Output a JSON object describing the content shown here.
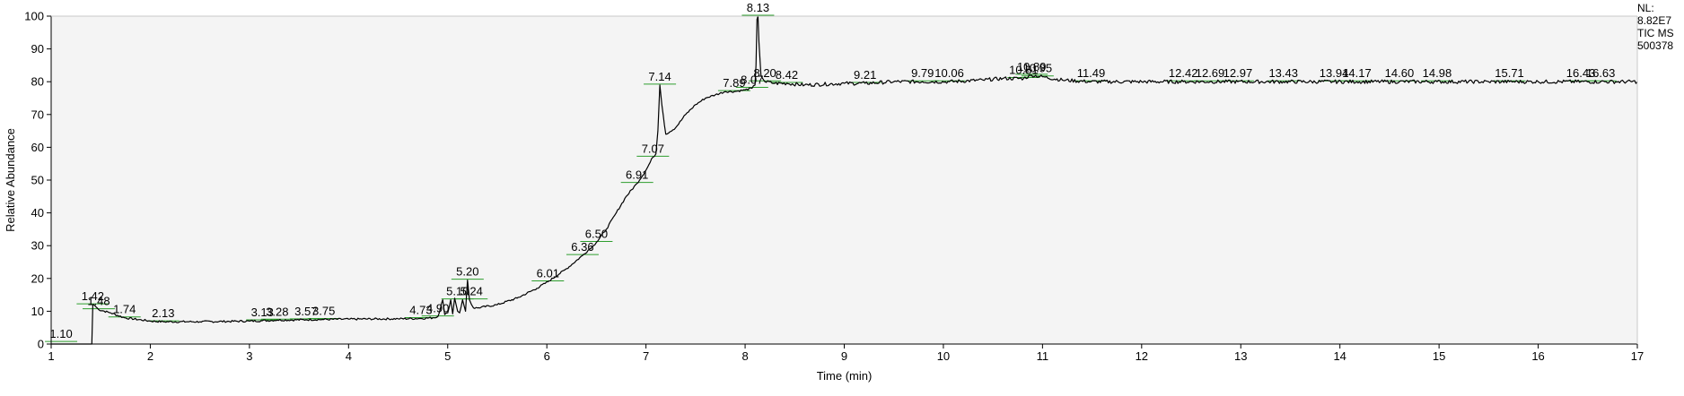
{
  "info": {
    "nl_label": "NL:",
    "nl_value": "8.82E7",
    "trace": "TIC  MS",
    "sample_id": "500378"
  },
  "chart_data": {
    "type": "line",
    "xlabel": "Time (min)",
    "ylabel": "Relative Abundance",
    "xlim": [
      1,
      17
    ],
    "ylim": [
      0,
      100
    ],
    "x_ticks": [
      1,
      2,
      3,
      4,
      5,
      6,
      7,
      8,
      9,
      10,
      11,
      12,
      13,
      14,
      15,
      16,
      17
    ],
    "y_ticks": [
      0,
      10,
      20,
      30,
      40,
      50,
      60,
      70,
      80,
      90,
      100
    ],
    "grid": false,
    "series": [
      {
        "x": [
          1.0,
          1.41,
          1.42,
          1.43,
          1.48,
          1.6,
          1.74,
          2.0,
          2.13,
          2.5,
          3.0,
          3.13,
          3.28,
          3.57,
          3.75,
          4.0,
          4.5,
          4.73,
          4.85,
          4.9,
          4.95,
          4.97,
          5.0,
          5.03,
          5.05,
          5.07,
          5.1,
          5.12,
          5.15,
          5.18,
          5.2,
          5.22,
          5.24,
          5.26,
          5.3,
          5.5,
          5.7,
          5.9,
          6.01,
          6.2,
          6.36,
          6.5,
          6.6,
          6.7,
          6.8,
          6.91,
          7.0,
          7.07,
          7.1,
          7.12,
          7.14,
          7.16,
          7.2,
          7.3,
          7.4,
          7.5,
          7.6,
          7.7,
          7.8,
          7.89,
          8.0,
          8.07,
          8.1,
          8.11,
          8.12,
          8.13,
          8.14,
          8.16,
          8.2,
          8.3,
          8.42,
          8.6,
          9.0,
          9.21,
          9.5,
          9.79,
          10.06,
          10.4,
          10.6,
          10.81,
          10.89,
          11.0,
          11.2,
          11.49,
          12.0,
          12.42,
          12.69,
          12.97,
          13.43,
          13.94,
          14.17,
          14.6,
          14.98,
          15.5,
          15.71,
          16.0,
          16.43,
          16.63,
          17.0
        ],
        "y": [
          0,
          0,
          12,
          12,
          10.5,
          9.5,
          8,
          7,
          6.8,
          6.8,
          7,
          7.1,
          7.3,
          7.4,
          7.5,
          7.6,
          7.7,
          7.8,
          8,
          8.3,
          13.5,
          9,
          9.5,
          13.5,
          9.2,
          14,
          10,
          9.5,
          13.5,
          10,
          19.5,
          13.5,
          12,
          11,
          11,
          12,
          14,
          17,
          19,
          23,
          27,
          31,
          35,
          40,
          45,
          49,
          53,
          57,
          58,
          65,
          79,
          73,
          64,
          66,
          70,
          73,
          75,
          76,
          77,
          77,
          77.5,
          78,
          79,
          85,
          99,
          100,
          92,
          82,
          80,
          79.5,
          79.5,
          79,
          79.5,
          79.5,
          80,
          80,
          80,
          80.5,
          81,
          81,
          82,
          81.5,
          80.5,
          80,
          80,
          80,
          80,
          80,
          80,
          80,
          80,
          80,
          80,
          80,
          80,
          80,
          80,
          80,
          80
        ]
      }
    ],
    "peak_labels": [
      {
        "x": 1.1,
        "y": 0.5,
        "text": "1.10"
      },
      {
        "x": 1.42,
        "y": 12,
        "text": "1.42"
      },
      {
        "x": 1.48,
        "y": 10.5,
        "text": "1.48"
      },
      {
        "x": 1.74,
        "y": 8,
        "text": "1.74"
      },
      {
        "x": 2.13,
        "y": 6.8,
        "text": "2.13"
      },
      {
        "x": 3.13,
        "y": 7.1,
        "text": "3.13"
      },
      {
        "x": 3.28,
        "y": 7.3,
        "text": "3.28"
      },
      {
        "x": 3.57,
        "y": 7.4,
        "text": "3.57"
      },
      {
        "x": 3.75,
        "y": 7.5,
        "text": "3.75"
      },
      {
        "x": 4.73,
        "y": 7.8,
        "text": "4.73"
      },
      {
        "x": 4.9,
        "y": 8.3,
        "text": "4.90"
      },
      {
        "x": 5.1,
        "y": 13.5,
        "text": "5.10"
      },
      {
        "x": 5.2,
        "y": 19.5,
        "text": "5.20"
      },
      {
        "x": 5.24,
        "y": 13.5,
        "text": "5.24"
      },
      {
        "x": 6.01,
        "y": 19,
        "text": "6.01"
      },
      {
        "x": 6.36,
        "y": 27,
        "text": "6.36"
      },
      {
        "x": 6.5,
        "y": 31,
        "text": "6.50"
      },
      {
        "x": 6.91,
        "y": 49,
        "text": "6.91"
      },
      {
        "x": 7.07,
        "y": 57,
        "text": "7.07"
      },
      {
        "x": 7.14,
        "y": 79,
        "text": "7.14"
      },
      {
        "x": 7.89,
        "y": 77,
        "text": "7.89"
      },
      {
        "x": 8.07,
        "y": 78,
        "text": "8.07"
      },
      {
        "x": 8.13,
        "y": 100,
        "text": "8.13"
      },
      {
        "x": 8.2,
        "y": 80,
        "text": "8.20"
      },
      {
        "x": 8.42,
        "y": 79.5,
        "text": "8.42"
      },
      {
        "x": 9.21,
        "y": 79.5,
        "text": "9.21"
      },
      {
        "x": 9.79,
        "y": 80,
        "text": "9.79"
      },
      {
        "x": 10.06,
        "y": 80,
        "text": "10.06"
      },
      {
        "x": 10.81,
        "y": 81,
        "text": "10.81"
      },
      {
        "x": 10.89,
        "y": 82,
        "text": "10.89"
      },
      {
        "x": 10.95,
        "y": 81.5,
        "text": "10.95"
      },
      {
        "x": 11.49,
        "y": 80,
        "text": "11.49"
      },
      {
        "x": 12.42,
        "y": 80,
        "text": "12.42"
      },
      {
        "x": 12.69,
        "y": 80,
        "text": "12.69"
      },
      {
        "x": 12.97,
        "y": 80,
        "text": "12.97"
      },
      {
        "x": 13.43,
        "y": 80,
        "text": "13.43"
      },
      {
        "x": 13.94,
        "y": 80,
        "text": "13.94"
      },
      {
        "x": 14.17,
        "y": 80,
        "text": "14.17"
      },
      {
        "x": 14.6,
        "y": 80,
        "text": "14.60"
      },
      {
        "x": 14.98,
        "y": 80,
        "text": "14.98"
      },
      {
        "x": 15.71,
        "y": 80,
        "text": "15.71"
      },
      {
        "x": 16.43,
        "y": 80,
        "text": "16.43"
      },
      {
        "x": 16.63,
        "y": 80,
        "text": "16.63"
      }
    ],
    "colors": {
      "trace": "#000000",
      "plot_background": "#f4f4f4",
      "integration_marks": "#2e9e2e"
    }
  }
}
